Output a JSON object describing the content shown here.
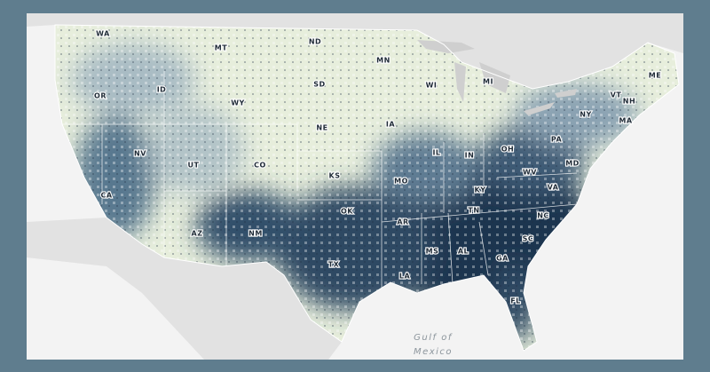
{
  "state_labels": [
    "WA",
    "MT",
    "ND",
    "MN",
    "OR",
    "ID",
    "SD",
    "WI",
    "MI",
    "ME",
    "WY",
    "VT",
    "NH",
    "NY",
    "MA",
    "NE",
    "IA",
    "PA",
    "NV",
    "UT",
    "CO",
    "IL",
    "IN",
    "OH",
    "MD",
    "WV",
    "KS",
    "MO",
    "KY",
    "VA",
    "CA",
    "OK",
    "TN",
    "NC",
    "AR",
    "AZ",
    "NM",
    "SC",
    "MS",
    "AL",
    "GA",
    "TX",
    "LA",
    "FL"
  ],
  "water_label": [
    "Gulf of",
    "Mexico"
  ]
}
